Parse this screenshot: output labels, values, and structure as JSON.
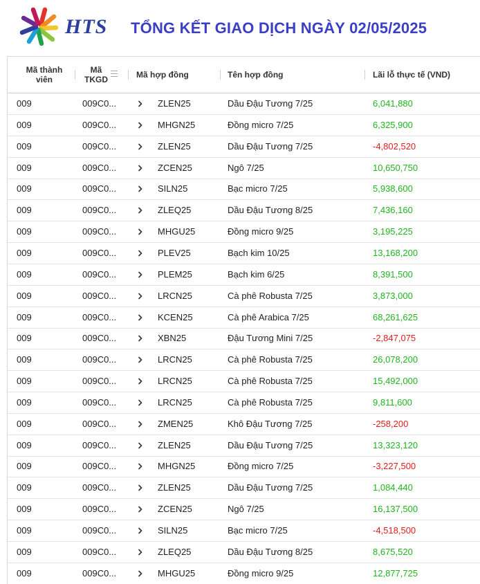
{
  "header": {
    "brand": "HTS",
    "title": "TỔNG KẾT GIAO DỊCH NGÀY 02/05/2025"
  },
  "colors": {
    "title": "#3a3fc6",
    "brand": "#2c3f9c",
    "profit": "#1fb41f",
    "loss": "#e51b1b"
  },
  "grid": {
    "columns": {
      "member_line1": "Mã thành",
      "member_line2": "viên",
      "account_line1": "Mã",
      "account_line2": "TKGD",
      "contract_code": "Mã hợp đồng",
      "contract_name": "Tên hợp đồng",
      "pnl": "Lãi lỗ thực tế (VND)"
    },
    "rows": [
      {
        "member": "009",
        "account": "009C0...",
        "code": "ZLEN25",
        "name": "Dầu Đậu Tương 7/25",
        "pnl": "6,041,880",
        "sign": "pos"
      },
      {
        "member": "009",
        "account": "009C0...",
        "code": "MHGN25",
        "name": "Đồng micro 7/25",
        "pnl": "6,325,900",
        "sign": "pos"
      },
      {
        "member": "009",
        "account": "009C0...",
        "code": "ZLEN25",
        "name": "Dầu Đậu Tương 7/25",
        "pnl": "-4,802,520",
        "sign": "neg"
      },
      {
        "member": "009",
        "account": "009C0...",
        "code": "ZCEN25",
        "name": "Ngô 7/25",
        "pnl": "10,650,750",
        "sign": "pos"
      },
      {
        "member": "009",
        "account": "009C0...",
        "code": "SILN25",
        "name": "Bạc micro 7/25",
        "pnl": "5,938,600",
        "sign": "pos"
      },
      {
        "member": "009",
        "account": "009C0...",
        "code": "ZLEQ25",
        "name": "Dầu Đậu Tương 8/25",
        "pnl": "7,436,160",
        "sign": "pos"
      },
      {
        "member": "009",
        "account": "009C0...",
        "code": "MHGU25",
        "name": "Đồng micro 9/25",
        "pnl": "3,195,225",
        "sign": "pos"
      },
      {
        "member": "009",
        "account": "009C0...",
        "code": "PLEV25",
        "name": "Bạch kim 10/25",
        "pnl": "13,168,200",
        "sign": "pos"
      },
      {
        "member": "009",
        "account": "009C0...",
        "code": "PLEM25",
        "name": "Bạch kim 6/25",
        "pnl": "8,391,500",
        "sign": "pos"
      },
      {
        "member": "009",
        "account": "009C0...",
        "code": "LRCN25",
        "name": "Cà phê Robusta 7/25",
        "pnl": "3,873,000",
        "sign": "pos"
      },
      {
        "member": "009",
        "account": "009C0...",
        "code": "KCEN25",
        "name": "Cà phê Arabica 7/25",
        "pnl": "68,261,625",
        "sign": "pos"
      },
      {
        "member": "009",
        "account": "009C0...",
        "code": "XBN25",
        "name": "Đậu Tương Mini 7/25",
        "pnl": "-2,847,075",
        "sign": "neg"
      },
      {
        "member": "009",
        "account": "009C0...",
        "code": "LRCN25",
        "name": "Cà phê Robusta 7/25",
        "pnl": "26,078,200",
        "sign": "pos"
      },
      {
        "member": "009",
        "account": "009C0...",
        "code": "LRCN25",
        "name": "Cà phê Robusta 7/25",
        "pnl": "15,492,000",
        "sign": "pos"
      },
      {
        "member": "009",
        "account": "009C0...",
        "code": "LRCN25",
        "name": "Cà phê Robusta 7/25",
        "pnl": "9,811,600",
        "sign": "pos"
      },
      {
        "member": "009",
        "account": "009C0...",
        "code": "ZMEN25",
        "name": "Khô Đậu Tương 7/25",
        "pnl": "-258,200",
        "sign": "neg"
      },
      {
        "member": "009",
        "account": "009C0...",
        "code": "ZLEN25",
        "name": "Dầu Đậu Tương 7/25",
        "pnl": "13,323,120",
        "sign": "pos"
      },
      {
        "member": "009",
        "account": "009C0...",
        "code": "MHGN25",
        "name": "Đồng micro 7/25",
        "pnl": "-3,227,500",
        "sign": "neg"
      },
      {
        "member": "009",
        "account": "009C0...",
        "code": "ZLEN25",
        "name": "Dầu Đậu Tương 7/25",
        "pnl": "1,084,440",
        "sign": "pos"
      },
      {
        "member": "009",
        "account": "009C0...",
        "code": "ZCEN25",
        "name": "Ngô 7/25",
        "pnl": "16,137,500",
        "sign": "pos"
      },
      {
        "member": "009",
        "account": "009C0...",
        "code": "SILN25",
        "name": "Bạc micro 7/25",
        "pnl": "-4,518,500",
        "sign": "neg"
      },
      {
        "member": "009",
        "account": "009C0...",
        "code": "ZLEQ25",
        "name": "Dầu Đậu Tương 8/25",
        "pnl": "8,675,520",
        "sign": "pos"
      },
      {
        "member": "009",
        "account": "009C0...",
        "code": "MHGU25",
        "name": "Đồng micro 9/25",
        "pnl": "12,877,725",
        "sign": "pos"
      }
    ]
  }
}
